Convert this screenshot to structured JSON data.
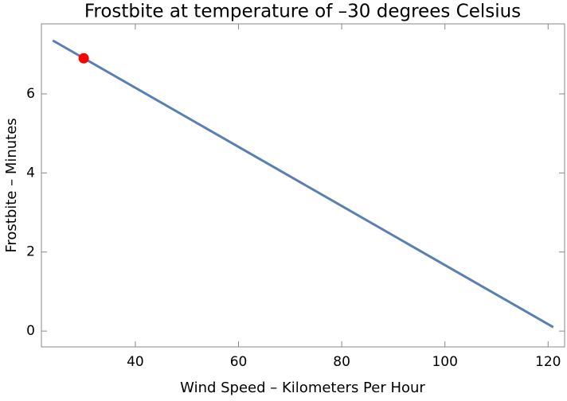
{
  "chart_data": {
    "type": "line",
    "title": "Frostbite at temperature of –30 degrees Celsius",
    "x_label": "Wind Speed – Kilometers Per Hour",
    "y_label": "Frostbite – Minutes",
    "series": [
      {
        "type": "line",
        "color": "#5a7fb5",
        "x": [
          24,
          121
        ],
        "values": [
          7.35,
          0.1
        ]
      },
      {
        "type": "scatter",
        "color": "#ff0000",
        "x": [
          30
        ],
        "values": [
          6.9
        ]
      }
    ],
    "xlim": [
      21.8,
      123.2
    ],
    "xticks": [
      40,
      60,
      80,
      100,
      120
    ],
    "ylim": [
      -0.4,
      7.77
    ],
    "yticks": [
      0,
      2,
      4,
      6
    ],
    "grid": false
  }
}
